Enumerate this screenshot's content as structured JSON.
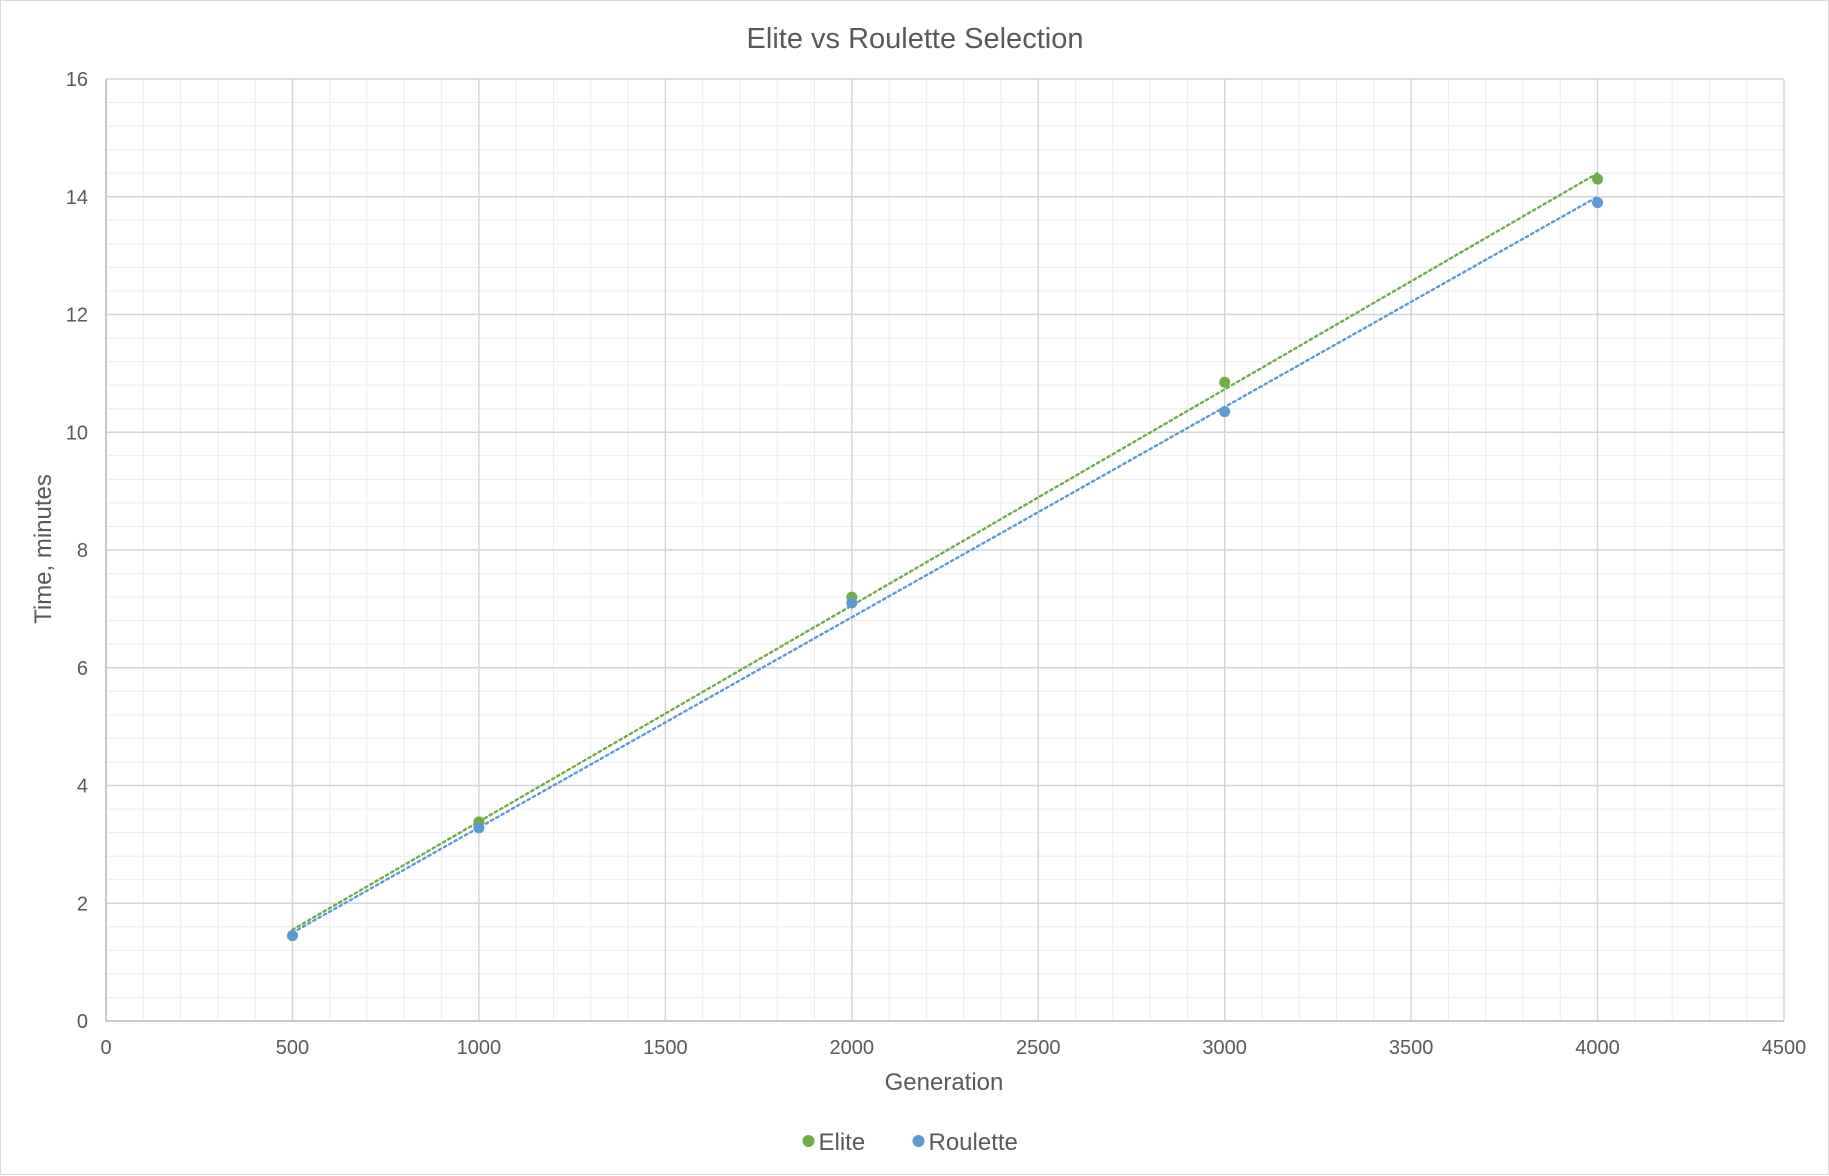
{
  "chart_data": {
    "type": "scatter",
    "title": "Elite vs Roulette Selection",
    "xlabel": "Generation",
    "ylabel": "Time, minutes",
    "xlim": [
      0,
      4500
    ],
    "ylim": [
      0,
      16
    ],
    "x_ticks": [
      0,
      500,
      1000,
      1500,
      2000,
      2500,
      3000,
      3500,
      4000,
      4500
    ],
    "y_ticks": [
      0,
      2,
      4,
      6,
      8,
      10,
      12,
      14,
      16
    ],
    "grid": true,
    "minor_grid": true,
    "legend_position": "bottom",
    "trendline": "linear, dotted",
    "series": [
      {
        "name": "Elite",
        "color": "#70ad47",
        "points": [
          {
            "x": 500,
            "y": 1.45
          },
          {
            "x": 1000,
            "y": 3.38
          },
          {
            "x": 2000,
            "y": 7.2
          },
          {
            "x": 3000,
            "y": 10.85
          },
          {
            "x": 4000,
            "y": 14.3
          }
        ],
        "trend_line": {
          "from": {
            "x": 500,
            "y": 1.55
          },
          "to": {
            "x": 4000,
            "y": 14.4
          }
        }
      },
      {
        "name": "Roulette",
        "color": "#5b9bd5",
        "points": [
          {
            "x": 500,
            "y": 1.45
          },
          {
            "x": 1000,
            "y": 3.28
          },
          {
            "x": 2000,
            "y": 7.1
          },
          {
            "x": 3000,
            "y": 10.35
          },
          {
            "x": 4000,
            "y": 13.9
          }
        ],
        "trend_line": {
          "from": {
            "x": 500,
            "y": 1.5
          },
          "to": {
            "x": 4000,
            "y": 14.0
          }
        }
      }
    ]
  }
}
